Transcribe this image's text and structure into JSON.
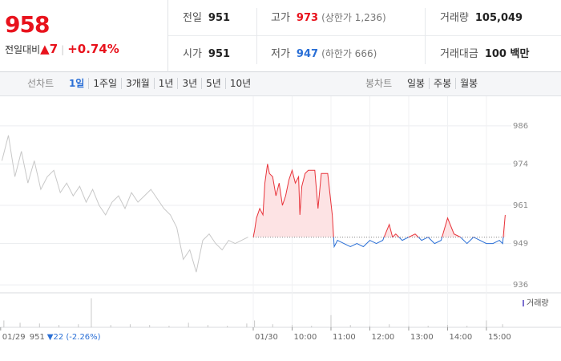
{
  "header": {
    "price": "958",
    "change_caption": "전일대비",
    "change": "▲7",
    "change_rate": "+0.74%",
    "stats": [
      [
        {
          "label": "전일",
          "value": "951"
        },
        {
          "label": "고가",
          "value": "973",
          "note": "(상한가 1,236)"
        },
        {
          "label": "거래량",
          "value": "105,049"
        }
      ],
      [
        {
          "label": "시가",
          "value": "951"
        },
        {
          "label": "저가",
          "value": "947",
          "note": "(하한가 666)"
        },
        {
          "label": "거래대금",
          "value": "100 백만"
        }
      ]
    ]
  },
  "tabs": {
    "line_label": "선차트",
    "line_periods": [
      "1일",
      "1주일",
      "3개월",
      "1년",
      "3년",
      "5년",
      "10년"
    ],
    "candle_label": "봉차트",
    "candle_periods": [
      "일봉",
      "주봉",
      "월봉"
    ]
  },
  "chart_data": {
    "type": "line",
    "xlim": [
      -391,
      391
    ],
    "ylim": [
      933,
      991
    ],
    "yticks": [
      936,
      949,
      961,
      974,
      986
    ],
    "xticks": [
      {
        "value": -390,
        "label": "01/29"
      },
      {
        "value": 0,
        "label": "01/30"
      },
      {
        "value": 60,
        "label": "10:00"
      },
      {
        "value": 120,
        "label": "11:00"
      },
      {
        "value": 180,
        "label": "12:00"
      },
      {
        "value": 240,
        "label": "13:00"
      },
      {
        "value": 300,
        "label": "14:00"
      },
      {
        "value": 360,
        "label": "15:00"
      }
    ],
    "prev_close_label": "951",
    "prev_change_label": "▼22 (-2.26%)",
    "baseline": 951,
    "grid": true,
    "series": [
      {
        "color": "#c8c8c8",
        "x": [
          -388,
          -378,
          -368,
          -358,
          -348,
          -338,
          -328,
          -318,
          -308,
          -298,
          -288,
          -278,
          -268,
          -258,
          -248,
          -238,
          -228,
          -218,
          -208,
          -198,
          -188,
          -178,
          -168,
          -158,
          -148,
          -138,
          -128,
          -118,
          -108,
          -98,
          -88,
          -78,
          -68,
          -58,
          -48,
          -38,
          -28,
          -18,
          -8
        ],
        "values": [
          975,
          983,
          970,
          978,
          968,
          975,
          966,
          970,
          972,
          965,
          968,
          964,
          967,
          962,
          966,
          961,
          958,
          962,
          964,
          960,
          965,
          962,
          964,
          966,
          963,
          960,
          958,
          954,
          944,
          947,
          940,
          950,
          952,
          949,
          947,
          950,
          949,
          950,
          951
        ]
      },
      {
        "color": "#e8333a",
        "color_below": "#2a6fd6",
        "fill": "#fde3e4",
        "x": [
          0,
          2,
          5,
          10,
          15,
          18,
          22,
          25,
          30,
          35,
          40,
          45,
          50,
          55,
          60,
          65,
          70,
          72,
          75,
          80,
          85,
          90,
          95,
          100,
          105,
          115,
          122,
          125,
          130,
          140,
          150,
          160,
          170,
          180,
          190,
          200,
          210,
          215,
          220,
          230,
          240,
          250,
          260,
          270,
          280,
          290,
          300,
          310,
          320,
          330,
          340,
          350,
          360,
          370,
          380,
          385,
          389
        ],
        "values": [
          951,
          953,
          957,
          960,
          958,
          968,
          974,
          971,
          970,
          964,
          968,
          961,
          964,
          969,
          972,
          968,
          970,
          958,
          967,
          971,
          972,
          972,
          972,
          960,
          971,
          971,
          958,
          948,
          950,
          949,
          948,
          949,
          948,
          950,
          949,
          950,
          955,
          951,
          952,
          950,
          951,
          952,
          950,
          951,
          949,
          950,
          957,
          952,
          951,
          949,
          951,
          950,
          949,
          949,
          950,
          949,
          958
        ]
      }
    ],
    "volume": {
      "name": "거래량",
      "color": "#c8c8c8",
      "ylim": [
        0,
        40000
      ],
      "x": [
        -385,
        -360,
        -330,
        -300,
        -270,
        -250,
        -220,
        -190,
        -160,
        -130,
        -100,
        -70,
        -40,
        -10,
        2,
        30,
        60,
        90,
        120,
        150,
        180,
        210,
        240,
        270,
        300,
        330,
        360,
        385
      ],
      "values": [
        9000,
        6000,
        5000,
        3000,
        4000,
        38000,
        3000,
        4000,
        3000,
        2000,
        6000,
        3000,
        2000,
        5000,
        9000,
        4000,
        3000,
        2000,
        16000,
        3000,
        2000,
        4000,
        2000,
        2000,
        3000,
        2000,
        9000,
        4000
      ]
    }
  }
}
